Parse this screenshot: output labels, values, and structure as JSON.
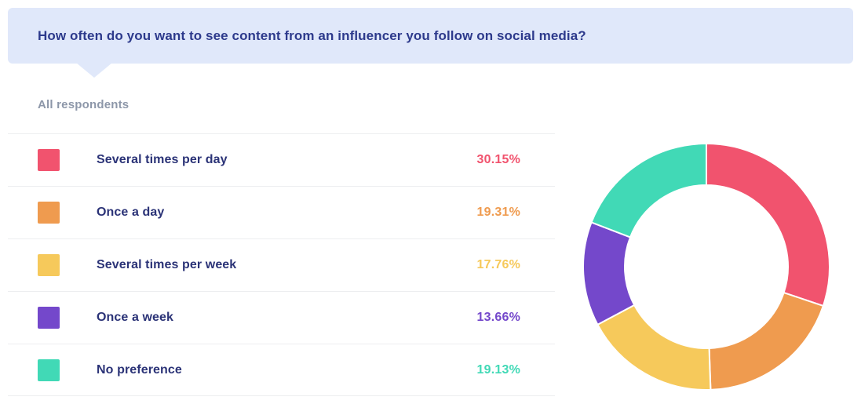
{
  "header": {
    "question": "How often do you want to see content from an influencer you follow on social media?"
  },
  "subtitle": "All respondents",
  "chart_data": {
    "type": "pie",
    "variant": "donut",
    "title": "How often do you want to see content from an influencer you follow on social media?",
    "subtitle": "All respondents",
    "categories": [
      "Several times per day",
      "Once a day",
      "Several times per week",
      "Once a week",
      "No preference"
    ],
    "values": [
      30.15,
      19.31,
      17.76,
      13.66,
      19.13
    ],
    "value_labels": [
      "30.15%",
      "19.31%",
      "17.76%",
      "13.66%",
      "19.13%"
    ],
    "colors": [
      "#F1536E",
      "#EF9B4F",
      "#F6C95B",
      "#7448CB",
      "#41D9B6"
    ],
    "legend_position": "left",
    "start_angle": "top",
    "direction": "clockwise",
    "hole_ratio": 0.66
  },
  "theme": {
    "banner_bg": "#E0E8FA",
    "banner_text": "#2D3A8C",
    "subtitle_text": "#8D97A9",
    "label_text": "#2B3377",
    "separator": "#EDEEF0",
    "background": "#FFFFFF"
  }
}
